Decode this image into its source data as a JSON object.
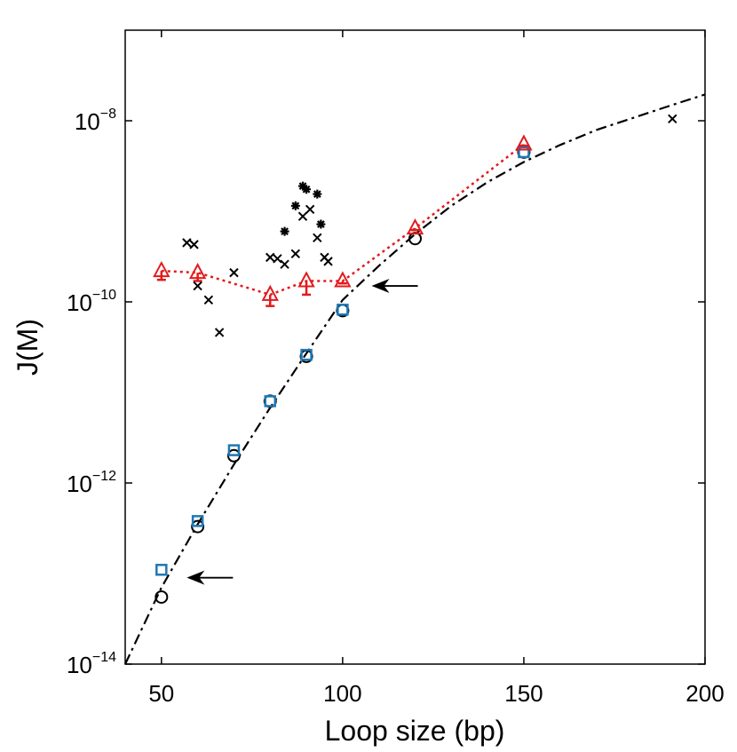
{
  "chart_data": {
    "type": "scatter",
    "xlabel": "Loop size (bp)",
    "ylabel": "J(M)",
    "xlim": [
      40,
      200
    ],
    "ylim": [
      1e-14,
      1e-07
    ],
    "yscale": "log",
    "xticks": [
      50,
      100,
      150,
      200
    ],
    "yticks": [
      {
        "value": 1e-14,
        "base": "10",
        "exp": "−14"
      },
      {
        "value": 1e-12,
        "base": "10",
        "exp": "−12"
      },
      {
        "value": 1e-10,
        "base": "10",
        "exp": "−10"
      },
      {
        "value": 1e-08,
        "base": "10",
        "exp": "−8"
      }
    ],
    "grid": false,
    "series": [
      {
        "marker": "circle",
        "color": "#000000",
        "x": [
          50,
          60,
          70,
          80,
          90,
          100,
          120,
          150
        ],
        "y": [
          5.5e-14,
          3.3e-13,
          2e-12,
          8e-12,
          2.5e-11,
          8e-11,
          5e-10,
          4.5e-09
        ]
      },
      {
        "marker": "square",
        "color": "#1f78b4",
        "x": [
          50,
          60,
          70,
          80,
          90,
          100,
          150
        ],
        "y": [
          1.1e-13,
          3.8e-13,
          2.3e-12,
          8e-12,
          2.6e-11,
          8.2e-11,
          4.5e-09
        ]
      },
      {
        "marker": "triangle",
        "color": "#e31a1c",
        "line": "dotted",
        "x": [
          50,
          60,
          80,
          90,
          100,
          120,
          150
        ],
        "y": [
          2.2e-10,
          2.1e-10,
          1.2e-10,
          1.7e-10,
          1.7e-10,
          6.5e-10,
          5.5e-09
        ],
        "yerr_low": [
          1.75e-10,
          1.7e-10,
          9e-11,
          1.2e-10,
          1.6e-10,
          6.2e-10,
          5.3e-09
        ]
      },
      {
        "marker": "cross",
        "color": "#000000",
        "x": [
          57,
          59,
          60,
          63,
          66,
          70,
          80,
          82,
          84,
          87,
          89,
          91,
          93,
          95,
          96,
          191
        ],
        "y": [
          4.5e-10,
          4.3e-10,
          1.5e-10,
          1.05e-10,
          4.6e-11,
          2.1e-10,
          3.1e-10,
          3e-10,
          2.6e-10,
          3.4e-10,
          8.8e-10,
          1.05e-09,
          5.1e-10,
          3.1e-10,
          2.8e-10,
          1.05e-08
        ]
      },
      {
        "marker": "asterisk",
        "color": "#000000",
        "x": [
          84,
          87,
          89,
          90,
          93,
          94
        ],
        "y": [
          6e-10,
          1.15e-09,
          1.9e-09,
          1.75e-09,
          1.55e-09,
          7.2e-10
        ]
      },
      {
        "marker": "none",
        "line": "dashdot",
        "color": "#000000",
        "function": "fit",
        "x": [
          40,
          50,
          60,
          70,
          80,
          90,
          100,
          110,
          120,
          130,
          140,
          150,
          160,
          170,
          180,
          190,
          200
        ],
        "y": [
          8e-15,
          7e-14,
          3.5e-13,
          1.6e-12,
          6.8e-12,
          2.7e-11,
          1.05e-10,
          2.5e-10,
          5.6e-10,
          1.15e-09,
          2.1e-09,
          3.5e-09,
          5.4e-09,
          7.9e-09,
          1.07e-08,
          1.45e-08,
          1.95e-08
        ]
      }
    ],
    "annotations": [
      {
        "type": "arrow",
        "direction": "left",
        "x": 108,
        "y": 1.5e-10
      },
      {
        "type": "arrow",
        "direction": "left",
        "x": 57,
        "y": 9e-14
      }
    ]
  }
}
